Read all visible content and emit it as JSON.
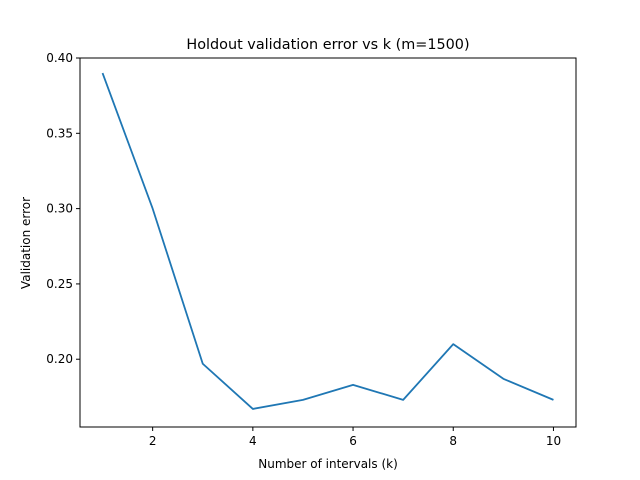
{
  "chart_data": {
    "type": "line",
    "title": "Holdout validation error vs k (m=1500)",
    "xlabel": "Number of intervals (k)",
    "ylabel": "Validation error",
    "xlim": [
      0.55,
      10.45
    ],
    "ylim": [
      0.155,
      0.4
    ],
    "xticks": [
      2,
      4,
      6,
      8,
      10
    ],
    "xtick_labels": [
      "2",
      "4",
      "6",
      "8",
      "10"
    ],
    "yticks": [
      0.2,
      0.25,
      0.3,
      0.35,
      0.4
    ],
    "ytick_labels": [
      "0.20",
      "0.25",
      "0.30",
      "0.35",
      "0.40"
    ],
    "grid": false,
    "line_color": "#1f77b4",
    "series": [
      {
        "x": [
          1,
          2,
          3,
          4,
          5,
          6,
          7,
          8,
          9,
          10
        ],
        "y": [
          0.39,
          0.3,
          0.197,
          0.167,
          0.173,
          0.183,
          0.173,
          0.21,
          0.187,
          0.173
        ]
      }
    ]
  }
}
